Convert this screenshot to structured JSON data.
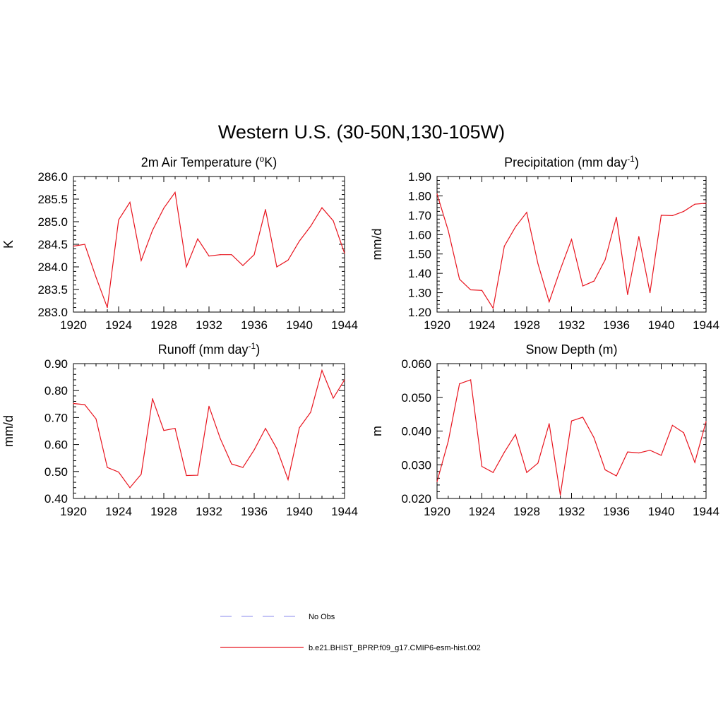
{
  "figure": {
    "title": "Western U.S. (30-50N,130-105W)"
  },
  "chart_data": [
    {
      "type": "line",
      "title": "2m Air Temperature (oK)",
      "title_parts": [
        "2m Air Temperature (",
        "o",
        "K)"
      ],
      "ylabel": "K",
      "xlim": [
        1920,
        1944
      ],
      "ylim": [
        283.0,
        286.0
      ],
      "xticks": [
        "1920",
        "1924",
        "1928",
        "1932",
        "1936",
        "1940",
        "1944"
      ],
      "yticks": [
        "283.0",
        "283.5",
        "284.0",
        "284.5",
        "285.0",
        "285.5",
        "286.0"
      ],
      "line_color": "#e8141e",
      "x": [
        1920,
        1921,
        1922,
        1923,
        1924,
        1925,
        1926,
        1927,
        1928,
        1929,
        1930,
        1931,
        1932,
        1933,
        1934,
        1935,
        1936,
        1937,
        1938,
        1939,
        1940,
        1941,
        1942,
        1943,
        1944
      ],
      "values": [
        284.46,
        284.5,
        283.77,
        283.1,
        285.04,
        285.43,
        284.14,
        284.81,
        285.3,
        285.65,
        284.0,
        284.62,
        284.24,
        284.27,
        284.27,
        284.03,
        284.27,
        285.27,
        284.0,
        284.15,
        284.57,
        284.9,
        285.31,
        285.02,
        284.3
      ]
    },
    {
      "type": "line",
      "title": "Precipitation (mm day-1)",
      "title_parts": [
        "Precipitation (mm day",
        "-1",
        ")"
      ],
      "ylabel": "mm/d",
      "xlim": [
        1920,
        1944
      ],
      "ylim": [
        1.2,
        1.9
      ],
      "xticks": [
        "1920",
        "1924",
        "1928",
        "1932",
        "1936",
        "1940",
        "1944"
      ],
      "yticks": [
        "1.20",
        "1.30",
        "1.40",
        "1.50",
        "1.60",
        "1.70",
        "1.80",
        "1.90"
      ],
      "line_color": "#e8141e",
      "x": [
        1920,
        1921,
        1922,
        1923,
        1924,
        1925,
        1926,
        1927,
        1928,
        1929,
        1930,
        1931,
        1932,
        1933,
        1934,
        1935,
        1936,
        1937,
        1938,
        1939,
        1940,
        1941,
        1942,
        1943,
        1944
      ],
      "values": [
        1.81,
        1.62,
        1.37,
        1.315,
        1.312,
        1.22,
        1.54,
        1.64,
        1.715,
        1.45,
        1.253,
        1.42,
        1.575,
        1.335,
        1.36,
        1.47,
        1.69,
        1.29,
        1.59,
        1.3,
        1.7,
        1.698,
        1.72,
        1.757,
        1.762
      ]
    },
    {
      "type": "line",
      "title": "Runoff (mm day-1)",
      "title_parts": [
        "Runoff (mm day",
        "-1",
        ")"
      ],
      "ylabel": "mm/d",
      "xlim": [
        1920,
        1944
      ],
      "ylim": [
        0.4,
        0.9
      ],
      "xticks": [
        "1920",
        "1924",
        "1928",
        "1932",
        "1936",
        "1940",
        "1944"
      ],
      "yticks": [
        "0.40",
        "0.50",
        "0.60",
        "0.70",
        "0.80",
        "0.90"
      ],
      "line_color": "#e8141e",
      "x": [
        1920,
        1921,
        1922,
        1923,
        1924,
        1925,
        1926,
        1927,
        1928,
        1929,
        1930,
        1931,
        1932,
        1933,
        1934,
        1935,
        1936,
        1937,
        1938,
        1939,
        1940,
        1941,
        1942,
        1943,
        1944
      ],
      "values": [
        0.752,
        0.748,
        0.695,
        0.515,
        0.498,
        0.44,
        0.49,
        0.77,
        0.652,
        0.66,
        0.485,
        0.486,
        0.742,
        0.622,
        0.528,
        0.515,
        0.58,
        0.66,
        0.585,
        0.47,
        0.662,
        0.72,
        0.875,
        0.772,
        0.84
      ]
    },
    {
      "type": "line",
      "title": "Snow Depth (m)",
      "title_parts": [
        "Snow Depth (m)"
      ],
      "ylabel": "m",
      "xlim": [
        1920,
        1944
      ],
      "ylim": [
        0.02,
        0.06
      ],
      "xticks": [
        "1920",
        "1924",
        "1928",
        "1932",
        "1936",
        "1940",
        "1944"
      ],
      "yticks": [
        "0.020",
        "0.030",
        "0.040",
        "0.050",
        "0.060"
      ],
      "line_color": "#e8141e",
      "x": [
        1920,
        1921,
        1922,
        1923,
        1924,
        1925,
        1926,
        1927,
        1928,
        1929,
        1930,
        1931,
        1932,
        1933,
        1934,
        1935,
        1936,
        1937,
        1938,
        1939,
        1940,
        1941,
        1942,
        1943,
        1944
      ],
      "values": [
        0.025,
        0.037,
        0.054,
        0.0552,
        0.0295,
        0.0277,
        0.0337,
        0.039,
        0.0277,
        0.0305,
        0.0422,
        0.021,
        0.043,
        0.0441,
        0.038,
        0.0285,
        0.0267,
        0.0338,
        0.0335,
        0.0343,
        0.0328,
        0.0417,
        0.0395,
        0.0307,
        0.0428
      ]
    }
  ],
  "legend": {
    "items": [
      {
        "label": "No Obs",
        "color": "#a0a0f0",
        "dashed": true
      },
      {
        "label": "b.e21.BHIST_BPRP.f09_g17.CMIP6-esm-hist.002",
        "color": "#e8141e",
        "dashed": false
      }
    ]
  }
}
